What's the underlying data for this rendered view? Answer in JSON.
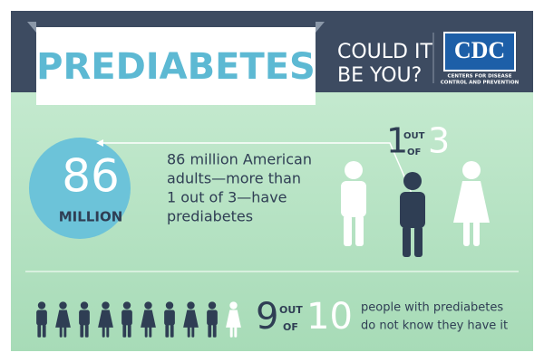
{
  "header": {
    "title": "PREDIABETES",
    "question": [
      "COULD IT",
      "BE YOU?"
    ],
    "logo": {
      "name": "CDC",
      "lines": [
        "CENTERS FOR DISEASE",
        "CONTROL AND PREVENTION"
      ]
    }
  },
  "stat_main": {
    "number": "86",
    "unit": "MILLION",
    "text": [
      "86 million American",
      "adults—more than",
      "1 out of 3—have",
      "prediabetes"
    ]
  },
  "ratio_one": {
    "numerator": "1",
    "out": "OUT",
    "of": "OF",
    "denominator": "3"
  },
  "ratio_two": {
    "numerator": "9",
    "out": "OUT",
    "of": "OF",
    "denominator": "10",
    "text": [
      "people with prediabetes",
      "do not know they have it"
    ]
  }
}
